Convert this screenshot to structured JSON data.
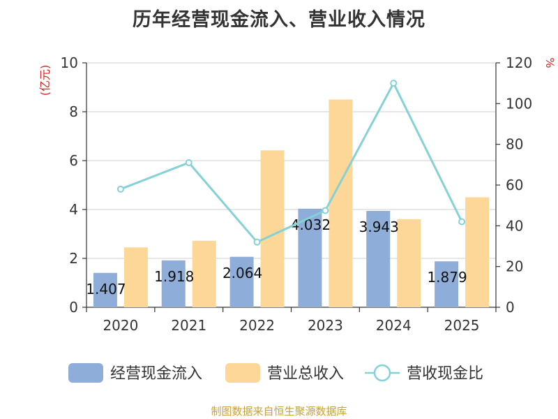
{
  "title": "历年经营现金流入、营业收入情况",
  "source": "制图数据来自恒生聚源数据库",
  "chart_data": {
    "type": "bar",
    "categories": [
      "2020",
      "2021",
      "2022",
      "2023",
      "2024",
      "2025"
    ],
    "series": [
      {
        "name": "经营现金流入",
        "kind": "bar",
        "axis": "left",
        "color": "#8eadd9",
        "values": [
          1.407,
          1.918,
          2.064,
          4.032,
          3.943,
          1.879
        ],
        "labels": [
          "1.407",
          "1.918",
          "2.064",
          "4.032",
          "3.943",
          "1.879"
        ]
      },
      {
        "name": "营业总收入",
        "kind": "bar",
        "axis": "left",
        "color": "#fdd797",
        "values": [
          2.45,
          2.72,
          6.42,
          8.5,
          3.6,
          4.5
        ]
      },
      {
        "name": "营收现金比",
        "kind": "line",
        "axis": "right",
        "color": "#84d1d6",
        "values": [
          58,
          71,
          32,
          47.5,
          110,
          42
        ]
      }
    ],
    "y_left": {
      "label": "(亿元)",
      "ticks": [
        0,
        2,
        4,
        6,
        8,
        10
      ],
      "range": [
        0,
        10
      ]
    },
    "y_right": {
      "label": "%",
      "ticks": [
        0,
        20,
        40,
        60,
        80,
        100,
        120
      ],
      "range": [
        0,
        120
      ]
    },
    "grid": true,
    "legend_position": "bottom"
  }
}
